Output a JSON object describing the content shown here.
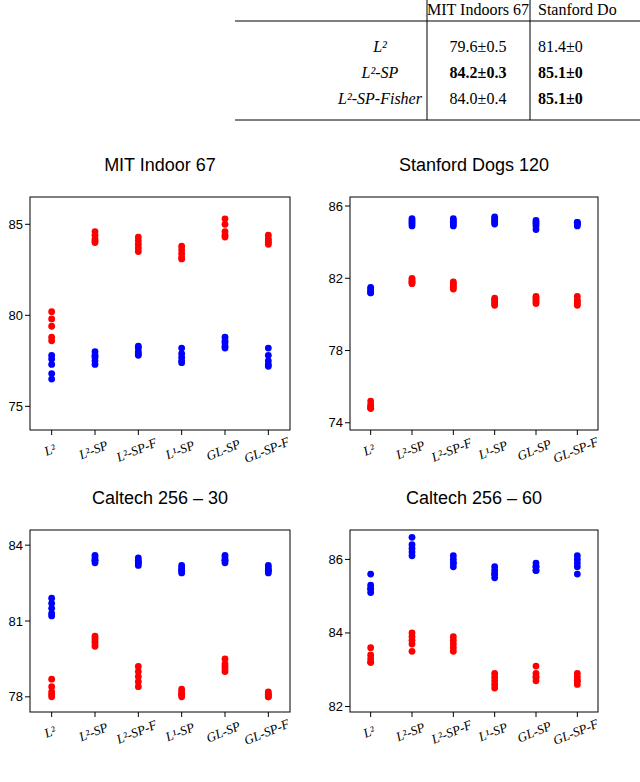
{
  "table": {
    "header": [
      "MIT Indoors 67",
      "Stanford Do"
    ],
    "rows": [
      {
        "label": "L²",
        "cells": [
          "79.6±0.5",
          "81.4±0"
        ],
        "bold": [
          false,
          false
        ]
      },
      {
        "label": "L²-SP",
        "cells": [
          "84.2±0.3",
          "85.1±0"
        ],
        "bold": [
          true,
          true
        ]
      },
      {
        "label": "L²-SP-Fisher",
        "cells": [
          "84.0±0.4",
          "85.1±0"
        ],
        "bold": [
          false,
          true
        ]
      }
    ]
  },
  "chart_data": [
    {
      "type": "scatter",
      "title": "MIT Indoor 67",
      "categories": [
        "L²",
        "L²-SP",
        "L²-SP-F",
        "L¹-SP",
        "GL-SP",
        "GL-SP-F"
      ],
      "series": [
        {
          "color": "#ff0000",
          "values": [
            [
              80.2,
              79.8,
              79.4,
              78.8,
              78.6
            ],
            [
              84.6,
              84.4,
              84.2,
              84.1,
              84.0
            ],
            [
              84.3,
              84.1,
              83.9,
              83.7,
              83.5
            ],
            [
              83.8,
              83.6,
              83.4,
              83.2,
              83.1
            ],
            [
              85.3,
              85.0,
              84.6,
              84.4,
              84.3
            ],
            [
              84.4,
              84.2,
              84.1,
              84.0,
              83.9
            ]
          ]
        },
        {
          "color": "#0000ff",
          "values": [
            [
              77.8,
              77.6,
              77.3,
              76.8,
              76.5
            ],
            [
              78.0,
              77.8,
              77.7,
              77.5,
              77.3
            ],
            [
              78.3,
              78.2,
              78.0,
              77.9,
              77.8
            ],
            [
              78.2,
              77.9,
              77.7,
              77.5,
              77.4
            ],
            [
              78.8,
              78.6,
              78.5,
              78.3,
              78.2
            ],
            [
              78.2,
              77.8,
              77.5,
              77.3,
              77.2
            ]
          ]
        }
      ],
      "ylim": [
        73.7,
        86.5
      ],
      "yticks": [
        75,
        80,
        85
      ]
    },
    {
      "type": "scatter",
      "title": "Stanford Dogs 120",
      "categories": [
        "L²",
        "L²-SP",
        "L²-SP-F",
        "L¹-SP",
        "GL-SP",
        "GL-SP-F"
      ],
      "series": [
        {
          "color": "#ff0000",
          "values": [
            [
              75.2,
              75.0,
              74.9,
              74.8,
              74.8
            ],
            [
              82.0,
              81.9,
              81.8,
              81.7,
              81.8
            ],
            [
              81.8,
              81.7,
              81.5,
              81.4,
              81.6
            ],
            [
              80.9,
              80.7,
              80.6,
              80.5,
              80.8
            ],
            [
              81.0,
              80.8,
              80.7,
              80.6,
              80.9
            ],
            [
              81.0,
              80.8,
              80.6,
              80.5,
              80.7
            ]
          ]
        },
        {
          "color": "#0000ff",
          "values": [
            [
              81.5,
              81.4,
              81.3,
              81.2,
              81.2
            ],
            [
              85.3,
              85.2,
              85.0,
              84.9,
              85.1
            ],
            [
              85.3,
              85.1,
              85.0,
              84.9,
              85.2
            ],
            [
              85.4,
              85.3,
              85.2,
              85.1,
              85.0
            ],
            [
              85.2,
              85.0,
              84.9,
              84.7,
              85.1
            ],
            [
              85.1,
              85.0,
              85.0,
              84.9,
              85.1
            ]
          ]
        }
      ],
      "ylim": [
        73.6,
        86.5
      ],
      "yticks": [
        74,
        78,
        82,
        86
      ]
    },
    {
      "type": "scatter",
      "title": "Caltech 256 – 30",
      "categories": [
        "L²",
        "L²-SP",
        "L²-SP-F",
        "L¹-SP",
        "GL-SP",
        "GL-SP-F"
      ],
      "series": [
        {
          "color": "#ff0000",
          "values": [
            [
              78.7,
              78.4,
              78.2,
              78.1,
              78.0
            ],
            [
              80.4,
              80.3,
              80.2,
              80.1,
              80.0
            ],
            [
              79.2,
              79.0,
              78.8,
              78.6,
              78.4
            ],
            [
              78.3,
              78.2,
              78.1,
              78.1,
              78.0
            ],
            [
              79.5,
              79.3,
              79.2,
              79.1,
              79.0
            ],
            [
              78.2,
              78.1,
              78.1,
              78.0,
              78.0
            ]
          ]
        },
        {
          "color": "#0000ff",
          "values": [
            [
              81.9,
              81.7,
              81.5,
              81.3,
              81.2
            ],
            [
              83.6,
              83.5,
              83.4,
              83.4,
              83.3
            ],
            [
              83.5,
              83.4,
              83.3,
              83.3,
              83.2
            ],
            [
              83.2,
              83.1,
              83.0,
              83.0,
              82.9
            ],
            [
              83.6,
              83.5,
              83.4,
              83.4,
              83.3
            ],
            [
              83.2,
              83.1,
              83.0,
              83.0,
              82.9
            ]
          ]
        }
      ],
      "ylim": [
        77.4,
        84.6
      ],
      "yticks": [
        78,
        81,
        84
      ]
    },
    {
      "type": "scatter",
      "title": "Caltech 256 – 60",
      "categories": [
        "L²",
        "L²-SP",
        "L²-SP-F",
        "L¹-SP",
        "GL-SP",
        "GL-SP-F"
      ],
      "series": [
        {
          "color": "#ff0000",
          "values": [
            [
              83.6,
              83.4,
              83.3,
              83.2,
              83.2
            ],
            [
              84.0,
              83.9,
              83.8,
              83.7,
              83.5
            ],
            [
              83.9,
              83.8,
              83.7,
              83.6,
              83.5
            ],
            [
              82.9,
              82.8,
              82.7,
              82.6,
              82.5
            ],
            [
              83.1,
              82.9,
              82.8,
              82.8,
              82.7
            ],
            [
              82.9,
              82.8,
              82.7,
              82.7,
              82.6
            ]
          ]
        },
        {
          "color": "#0000ff",
          "values": [
            [
              85.6,
              85.3,
              85.2,
              85.1,
              85.2
            ],
            [
              86.6,
              86.4,
              86.3,
              86.2,
              86.1
            ],
            [
              86.1,
              86.0,
              85.9,
              85.9,
              85.8
            ],
            [
              85.8,
              85.7,
              85.6,
              85.6,
              85.5
            ],
            [
              85.9,
              85.8,
              85.8,
              85.7,
              85.7
            ],
            [
              86.1,
              86.0,
              85.9,
              85.8,
              85.6
            ]
          ]
        }
      ],
      "ylim": [
        81.85,
        86.8
      ],
      "yticks": [
        82,
        84,
        86
      ]
    }
  ]
}
